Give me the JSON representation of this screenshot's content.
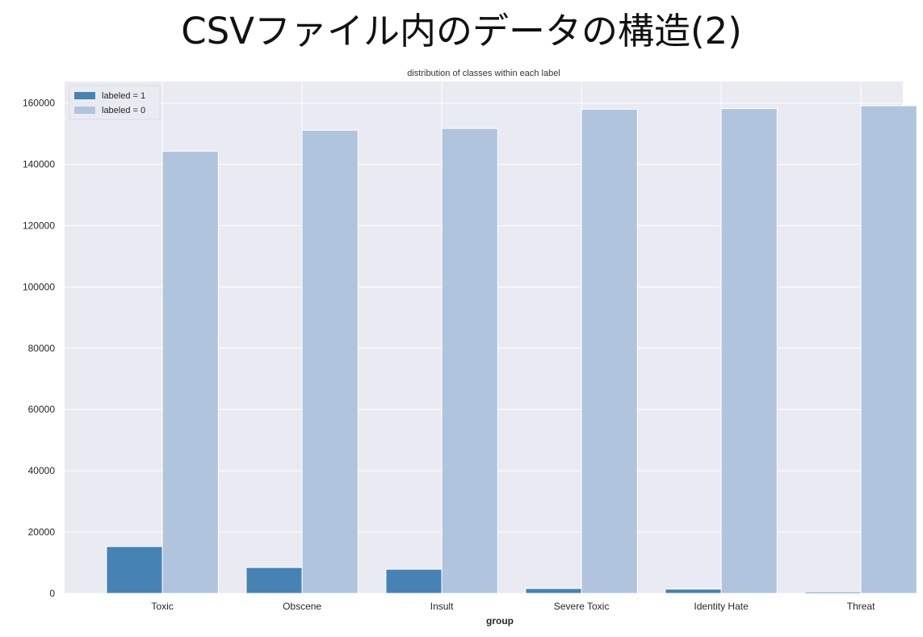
{
  "slide": {
    "title": "CSVファイル内のデータの構造(2)"
  },
  "chart_data": {
    "type": "bar",
    "title": "distribution of classes within each label",
    "xlabel": "group",
    "ylabel": "",
    "categories": [
      "Toxic",
      "Obscene",
      "Insult",
      "Severe Toxic",
      "Identity Hate",
      "Threat"
    ],
    "series": [
      {
        "name": "labeled = 1",
        "color": "#4682b4",
        "values": [
          15294,
          8449,
          7877,
          1595,
          1405,
          478
        ]
      },
      {
        "name": "labeled = 0",
        "color": "#b0c4de",
        "values": [
          144277,
          151122,
          151694,
          157976,
          158166,
          159093
        ]
      }
    ],
    "ylim": [
      0,
      167000
    ],
    "yticks": [
      0,
      20000,
      40000,
      60000,
      80000,
      100000,
      120000,
      140000,
      160000
    ],
    "grid": true,
    "legend_position": "top-left",
    "colors": {
      "background": "#eaeaf2",
      "grid": "#ffffff"
    }
  }
}
